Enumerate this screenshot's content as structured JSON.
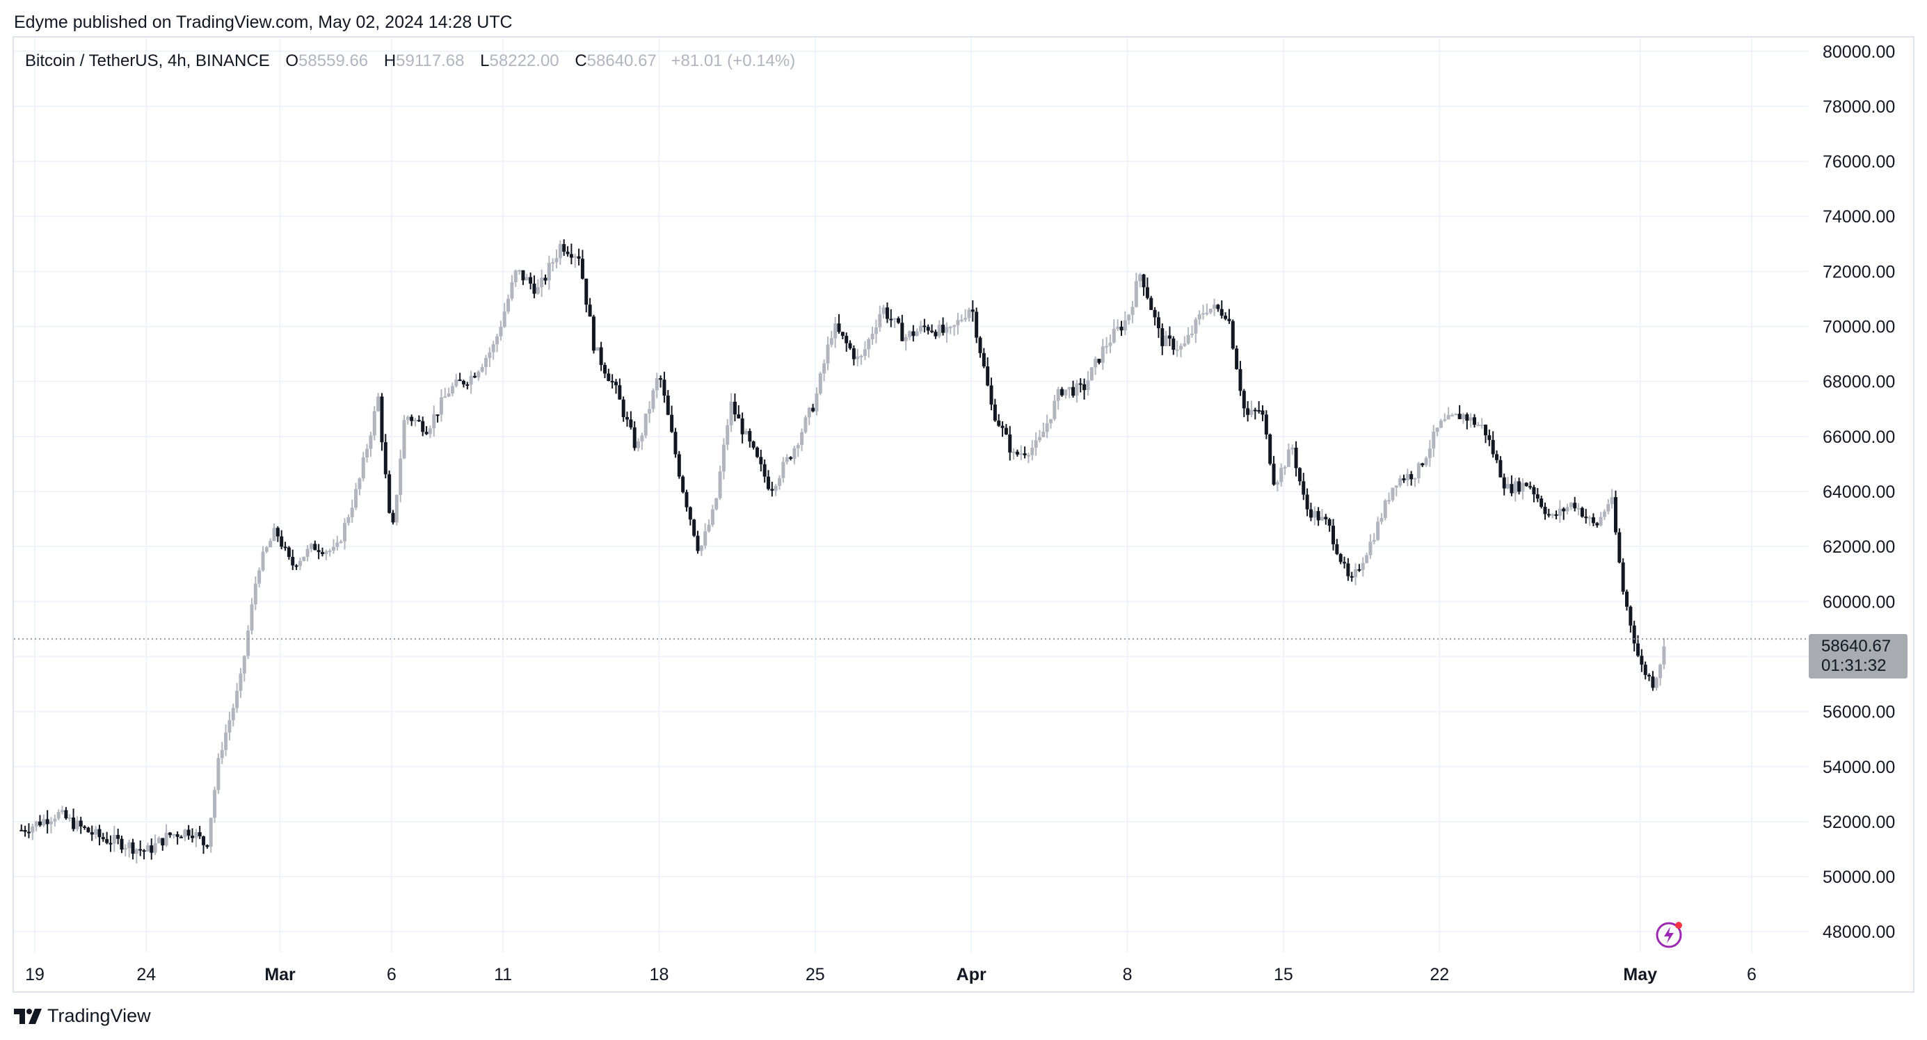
{
  "header": {
    "published_line": "Edyme published on TradingView.com, May 02, 2024 14:28 UTC"
  },
  "legend": {
    "symbol": "Bitcoin / TetherUS, 4h, BINANCE",
    "open_label": "O",
    "open": "58559.66",
    "high_label": "H",
    "high": "59117.68",
    "low_label": "L",
    "low": "58222.00",
    "close_label": "C",
    "close": "58640.67",
    "change": "+81.01 (+0.14%)"
  },
  "price_badge": {
    "price": "58640.67",
    "countdown": "01:31:32"
  },
  "footer": {
    "brand": "TradingView"
  },
  "icons": {
    "logo": "tradingview-logo-icon",
    "alert": "lightning-bolt-icon"
  },
  "colors": {
    "up_candle": "#b2b5be",
    "down_candle": "#131722",
    "grid": "#f0f3fa",
    "badge": "#a9abb2",
    "bolt": "#9c27b0"
  },
  "chart_data": {
    "type": "candlestick",
    "title": "Bitcoin / TetherUS, 4h, BINANCE",
    "timeframe": "4h",
    "xlabel": "",
    "ylabel": "",
    "ylim": [
      47500,
      80500
    ],
    "y_ticks": [
      "80000.00",
      "78000.00",
      "76000.00",
      "74000.00",
      "72000.00",
      "70000.00",
      "68000.00",
      "66000.00",
      "64000.00",
      "62000.00",
      "60000.00",
      "58000.00",
      "56000.00",
      "54000.00",
      "52000.00",
      "50000.00",
      "48000.00"
    ],
    "x_ticks": [
      {
        "label": "19",
        "day": 0,
        "bold": false
      },
      {
        "label": "24",
        "day": 5,
        "bold": false
      },
      {
        "label": "Mar",
        "day": 11,
        "bold": true
      },
      {
        "label": "6",
        "day": 16,
        "bold": false
      },
      {
        "label": "11",
        "day": 21,
        "bold": false
      },
      {
        "label": "18",
        "day": 28,
        "bold": false
      },
      {
        "label": "25",
        "day": 35,
        "bold": false
      },
      {
        "label": "Apr",
        "day": 42,
        "bold": true
      },
      {
        "label": "8",
        "day": 49,
        "bold": false
      },
      {
        "label": "15",
        "day": 56,
        "bold": false
      },
      {
        "label": "22",
        "day": 63,
        "bold": false
      },
      {
        "label": "May",
        "day": 72,
        "bold": true
      },
      {
        "label": "6",
        "day": 77,
        "bold": false
      }
    ],
    "last_price": 58640.67,
    "daily_close_path": [
      {
        "day": -0.6,
        "close": 51700
      },
      {
        "day": 0,
        "close": 51900
      },
      {
        "day": 1,
        "close": 52300
      },
      {
        "day": 2,
        "close": 51800
      },
      {
        "day": 3,
        "close": 51400
      },
      {
        "day": 4,
        "close": 51200
      },
      {
        "day": 5,
        "close": 50900
      },
      {
        "day": 6,
        "close": 51500
      },
      {
        "day": 7,
        "close": 51700
      },
      {
        "day": 7.7,
        "close": 51100
      },
      {
        "day": 8.3,
        "close": 54500
      },
      {
        "day": 9.2,
        "close": 57000
      },
      {
        "day": 10,
        "close": 61200
      },
      {
        "day": 10.8,
        "close": 62600
      },
      {
        "day": 11.5,
        "close": 61300
      },
      {
        "day": 12.5,
        "close": 62000
      },
      {
        "day": 13.5,
        "close": 61800
      },
      {
        "day": 14.5,
        "close": 64200
      },
      {
        "day": 15.4,
        "close": 67400
      },
      {
        "day": 16,
        "close": 62200
      },
      {
        "day": 16.6,
        "close": 66800
      },
      {
        "day": 17.6,
        "close": 66300
      },
      {
        "day": 18.6,
        "close": 67700
      },
      {
        "day": 19.6,
        "close": 68200
      },
      {
        "day": 20.6,
        "close": 69300
      },
      {
        "day": 21.6,
        "close": 72000
      },
      {
        "day": 22.6,
        "close": 71300
      },
      {
        "day": 23.6,
        "close": 73000
      },
      {
        "day": 24.4,
        "close": 72600
      },
      {
        "day": 25.1,
        "close": 69200
      },
      {
        "day": 26,
        "close": 67800
      },
      {
        "day": 27,
        "close": 65500
      },
      {
        "day": 28,
        "close": 68300
      },
      {
        "day": 29,
        "close": 64300
      },
      {
        "day": 29.8,
        "close": 61800
      },
      {
        "day": 30.5,
        "close": 63400
      },
      {
        "day": 31.2,
        "close": 67200
      },
      {
        "day": 32,
        "close": 65800
      },
      {
        "day": 33,
        "close": 64100
      },
      {
        "day": 34,
        "close": 65500
      },
      {
        "day": 35,
        "close": 67300
      },
      {
        "day": 35.8,
        "close": 70000
      },
      {
        "day": 37,
        "close": 68700
      },
      {
        "day": 38,
        "close": 70700
      },
      {
        "day": 39,
        "close": 69600
      },
      {
        "day": 40,
        "close": 70000
      },
      {
        "day": 41,
        "close": 69700
      },
      {
        "day": 42,
        "close": 70800
      },
      {
        "day": 42.9,
        "close": 67100
      },
      {
        "day": 43.9,
        "close": 65300
      },
      {
        "day": 45,
        "close": 65700
      },
      {
        "day": 46,
        "close": 67700
      },
      {
        "day": 47,
        "close": 67700
      },
      {
        "day": 48,
        "close": 69300
      },
      {
        "day": 49,
        "close": 70300
      },
      {
        "day": 49.6,
        "close": 72000
      },
      {
        "day": 50.5,
        "close": 69500
      },
      {
        "day": 51.5,
        "close": 69200
      },
      {
        "day": 52.5,
        "close": 70700
      },
      {
        "day": 53.5,
        "close": 70500
      },
      {
        "day": 54.3,
        "close": 66700
      },
      {
        "day": 55,
        "close": 67000
      },
      {
        "day": 55.6,
        "close": 64300
      },
      {
        "day": 56.4,
        "close": 65600
      },
      {
        "day": 57,
        "close": 63400
      },
      {
        "day": 58,
        "close": 62800
      },
      {
        "day": 59,
        "close": 60600
      },
      {
        "day": 60,
        "close": 62300
      },
      {
        "day": 61,
        "close": 64400
      },
      {
        "day": 62,
        "close": 64700
      },
      {
        "day": 63,
        "close": 66400
      },
      {
        "day": 64,
        "close": 66800
      },
      {
        "day": 65,
        "close": 66300
      },
      {
        "day": 66,
        "close": 64100
      },
      {
        "day": 67,
        "close": 64300
      },
      {
        "day": 68,
        "close": 63000
      },
      {
        "day": 69,
        "close": 63600
      },
      {
        "day": 70,
        "close": 62700
      },
      {
        "day": 70.7,
        "close": 63800
      },
      {
        "day": 71.2,
        "close": 60500
      },
      {
        "day": 72,
        "close": 57700
      },
      {
        "day": 72.6,
        "close": 57000
      },
      {
        "day": 73.2,
        "close": 58641
      }
    ]
  }
}
